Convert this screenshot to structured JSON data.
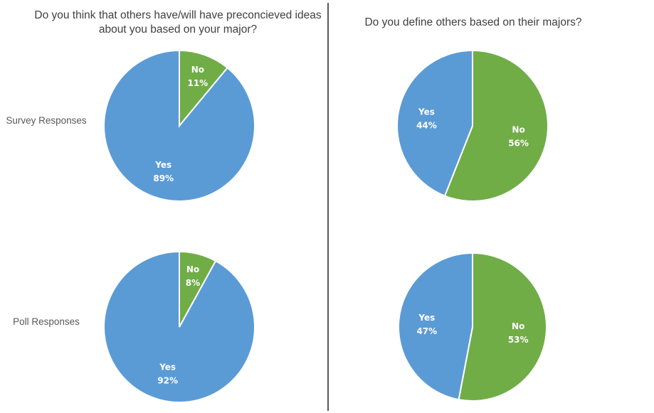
{
  "titles": {
    "left": "Do you think that others have/will have preconcieved ideas about you based on your major?",
    "right": "Do you define others based on their majors?"
  },
  "row_labels": [
    "Survey Responses",
    "Poll Responses"
  ],
  "colors": {
    "yes": "#5B9BD5",
    "no": "#70AD47",
    "border": "#ffffff"
  },
  "chart_data": [
    {
      "type": "pie",
      "title": "Do you think that others have/will have preconcieved ideas about you based on your major?",
      "row": "Survey Responses",
      "slices": [
        {
          "label": "No",
          "value": 11,
          "display": "11%"
        },
        {
          "label": "Yes",
          "value": 89,
          "display": "89%"
        }
      ]
    },
    {
      "type": "pie",
      "title": "Do you define others based on their majors?",
      "row": "Survey Responses",
      "slices": [
        {
          "label": "No",
          "value": 56,
          "display": "56%"
        },
        {
          "label": "Yes",
          "value": 44,
          "display": "44%"
        }
      ]
    },
    {
      "type": "pie",
      "title": "Do you think that others have/will have preconcieved ideas about you based on your major?",
      "row": "Poll Responses",
      "slices": [
        {
          "label": "No",
          "value": 8,
          "display": "8%"
        },
        {
          "label": "Yes",
          "value": 92,
          "display": "92%"
        }
      ]
    },
    {
      "type": "pie",
      "title": "Do you define others based on their majors?",
      "row": "Poll Responses",
      "slices": [
        {
          "label": "No",
          "value": 53,
          "display": "53%"
        },
        {
          "label": "Yes",
          "value": 47,
          "display": "47%"
        }
      ]
    }
  ]
}
